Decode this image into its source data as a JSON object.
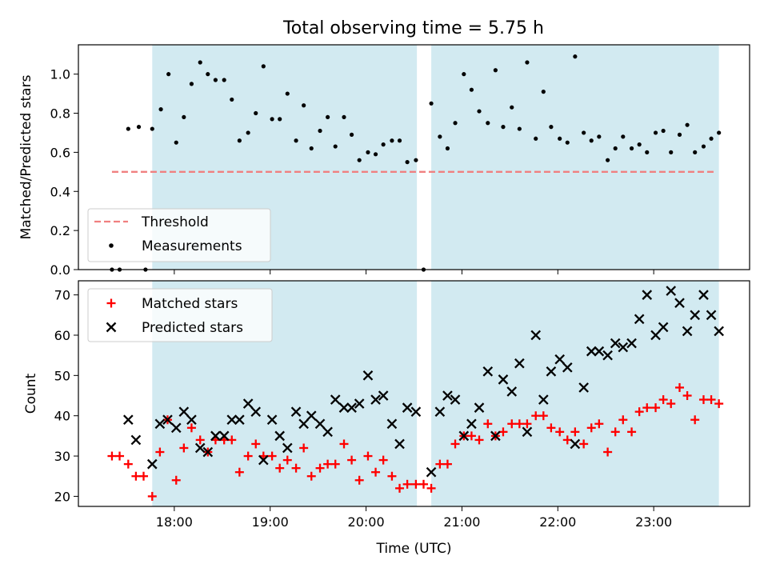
{
  "chart_data": {
    "title": "Total observing time = 5.75 h",
    "xlabel": "Time (UTC)",
    "x_unit": "hours UTC",
    "xlim": [
      17.0,
      24.0
    ],
    "x_ticks": [
      {
        "value": 18,
        "label": "18:00"
      },
      {
        "value": 19,
        "label": "19:00"
      },
      {
        "value": 20,
        "label": "20:00"
      },
      {
        "value": 21,
        "label": "21:00"
      },
      {
        "value": 22,
        "label": "22:00"
      },
      {
        "value": 23,
        "label": "23:00"
      }
    ],
    "shaded_intervals": [
      [
        17.77,
        20.53
      ],
      [
        20.68,
        23.68
      ]
    ],
    "shade_color": "#add8e6",
    "panels": [
      {
        "id": "ratio",
        "type": "scatter",
        "ylabel": "Matched/Predicted stars",
        "ylim": [
          0.0,
          1.15
        ],
        "y_ticks": [
          0.0,
          0.2,
          0.4,
          0.6,
          0.8,
          1.0
        ],
        "y_tick_labels": [
          "0.0",
          "0.2",
          "0.4",
          "0.6",
          "0.8",
          "1.0"
        ],
        "threshold": {
          "value": 0.5,
          "x_range": [
            17.35,
            23.65
          ],
          "color": "#f08080",
          "label": "Threshold"
        },
        "legend": {
          "position": "lower-left",
          "entries": [
            "Threshold",
            "Measurements"
          ]
        },
        "series": [
          {
            "name": "Measurements",
            "marker": "dot",
            "color": "#000000",
            "points": [
              [
                17.35,
                0.0
              ],
              [
                17.43,
                0.0
              ],
              [
                17.52,
                0.72
              ],
              [
                17.63,
                0.73
              ],
              [
                17.7,
                0.0
              ],
              [
                17.77,
                0.72
              ],
              [
                17.86,
                0.82
              ],
              [
                17.94,
                1.0
              ],
              [
                18.02,
                0.65
              ],
              [
                18.1,
                0.78
              ],
              [
                18.18,
                0.95
              ],
              [
                18.27,
                1.06
              ],
              [
                18.35,
                1.0
              ],
              [
                18.43,
                0.97
              ],
              [
                18.52,
                0.97
              ],
              [
                18.6,
                0.87
              ],
              [
                18.68,
                0.66
              ],
              [
                18.77,
                0.7
              ],
              [
                18.85,
                0.8
              ],
              [
                18.93,
                1.04
              ],
              [
                19.02,
                0.77
              ],
              [
                19.1,
                0.77
              ],
              [
                19.18,
                0.9
              ],
              [
                19.27,
                0.66
              ],
              [
                19.35,
                0.84
              ],
              [
                19.43,
                0.62
              ],
              [
                19.52,
                0.71
              ],
              [
                19.6,
                0.78
              ],
              [
                19.68,
                0.63
              ],
              [
                19.77,
                0.78
              ],
              [
                19.85,
                0.69
              ],
              [
                19.93,
                0.56
              ],
              [
                20.02,
                0.6
              ],
              [
                20.1,
                0.59
              ],
              [
                20.18,
                0.64
              ],
              [
                20.27,
                0.66
              ],
              [
                20.35,
                0.66
              ],
              [
                20.43,
                0.55
              ],
              [
                20.52,
                0.56
              ],
              [
                20.6,
                0.0
              ],
              [
                20.68,
                0.85
              ],
              [
                20.77,
                0.68
              ],
              [
                20.85,
                0.62
              ],
              [
                20.93,
                0.75
              ],
              [
                21.02,
                1.0
              ],
              [
                21.1,
                0.92
              ],
              [
                21.18,
                0.81
              ],
              [
                21.27,
                0.75
              ],
              [
                21.35,
                1.02
              ],
              [
                21.43,
                0.73
              ],
              [
                21.52,
                0.83
              ],
              [
                21.6,
                0.72
              ],
              [
                21.68,
                1.06
              ],
              [
                21.77,
                0.67
              ],
              [
                21.85,
                0.91
              ],
              [
                21.93,
                0.73
              ],
              [
                22.02,
                0.67
              ],
              [
                22.1,
                0.65
              ],
              [
                22.18,
                1.09
              ],
              [
                22.27,
                0.7
              ],
              [
                22.35,
                0.66
              ],
              [
                22.43,
                0.68
              ],
              [
                22.52,
                0.56
              ],
              [
                22.6,
                0.62
              ],
              [
                22.68,
                0.68
              ],
              [
                22.77,
                0.62
              ],
              [
                22.85,
                0.64
              ],
              [
                22.93,
                0.6
              ],
              [
                23.02,
                0.7
              ],
              [
                23.1,
                0.71
              ],
              [
                23.18,
                0.6
              ],
              [
                23.27,
                0.69
              ],
              [
                23.35,
                0.74
              ],
              [
                23.43,
                0.6
              ],
              [
                23.52,
                0.63
              ],
              [
                23.6,
                0.67
              ],
              [
                23.68,
                0.7
              ]
            ]
          }
        ]
      },
      {
        "id": "counts",
        "type": "scatter",
        "ylabel": "Count",
        "ylim": [
          17.5,
          73.5
        ],
        "y_ticks": [
          20,
          30,
          40,
          50,
          60,
          70
        ],
        "y_tick_labels": [
          "20",
          "30",
          "40",
          "50",
          "60",
          "70"
        ],
        "legend": {
          "position": "upper-left",
          "entries": [
            "Matched stars",
            "Predicted stars"
          ]
        },
        "series": [
          {
            "name": "Matched stars",
            "marker": "plus",
            "color": "#ff0000",
            "points": [
              [
                17.35,
                30
              ],
              [
                17.43,
                30
              ],
              [
                17.52,
                28
              ],
              [
                17.6,
                25
              ],
              [
                17.68,
                25
              ],
              [
                17.77,
                20
              ],
              [
                17.85,
                31
              ],
              [
                17.93,
                39
              ],
              [
                18.02,
                24
              ],
              [
                18.1,
                32
              ],
              [
                18.18,
                37
              ],
              [
                18.27,
                34
              ],
              [
                18.35,
                31
              ],
              [
                18.43,
                34
              ],
              [
                18.52,
                34
              ],
              [
                18.6,
                34
              ],
              [
                18.68,
                26
              ],
              [
                18.77,
                30
              ],
              [
                18.85,
                33
              ],
              [
                18.93,
                30
              ],
              [
                19.02,
                30
              ],
              [
                19.1,
                27
              ],
              [
                19.18,
                29
              ],
              [
                19.27,
                27
              ],
              [
                19.35,
                32
              ],
              [
                19.43,
                25
              ],
              [
                19.52,
                27
              ],
              [
                19.6,
                28
              ],
              [
                19.68,
                28
              ],
              [
                19.77,
                33
              ],
              [
                19.85,
                29
              ],
              [
                19.93,
                24
              ],
              [
                20.02,
                30
              ],
              [
                20.1,
                26
              ],
              [
                20.18,
                29
              ],
              [
                20.27,
                25
              ],
              [
                20.35,
                22
              ],
              [
                20.43,
                23
              ],
              [
                20.52,
                23
              ],
              [
                20.6,
                23
              ],
              [
                20.68,
                22
              ],
              [
                20.77,
                28
              ],
              [
                20.85,
                28
              ],
              [
                20.93,
                33
              ],
              [
                21.02,
                35
              ],
              [
                21.1,
                35
              ],
              [
                21.18,
                34
              ],
              [
                21.27,
                38
              ],
              [
                21.35,
                35
              ],
              [
                21.43,
                36
              ],
              [
                21.52,
                38
              ],
              [
                21.6,
                38
              ],
              [
                21.68,
                38
              ],
              [
                21.77,
                40
              ],
              [
                21.85,
                40
              ],
              [
                21.93,
                37
              ],
              [
                22.02,
                36
              ],
              [
                22.1,
                34
              ],
              [
                22.18,
                36
              ],
              [
                22.27,
                33
              ],
              [
                22.35,
                37
              ],
              [
                22.43,
                38
              ],
              [
                22.52,
                31
              ],
              [
                22.6,
                36
              ],
              [
                22.68,
                39
              ],
              [
                22.77,
                36
              ],
              [
                22.85,
                41
              ],
              [
                22.93,
                42
              ],
              [
                23.02,
                42
              ],
              [
                23.1,
                44
              ],
              [
                23.18,
                43
              ],
              [
                23.27,
                47
              ],
              [
                23.35,
                45
              ],
              [
                23.43,
                39
              ],
              [
                23.52,
                44
              ],
              [
                23.6,
                44
              ],
              [
                23.68,
                43
              ]
            ]
          },
          {
            "name": "Predicted stars",
            "marker": "x",
            "color": "#000000",
            "points": [
              [
                17.52,
                39
              ],
              [
                17.6,
                34
              ],
              [
                17.77,
                28
              ],
              [
                17.85,
                38
              ],
              [
                17.93,
                39
              ],
              [
                18.02,
                37
              ],
              [
                18.1,
                41
              ],
              [
                18.18,
                39
              ],
              [
                18.27,
                32
              ],
              [
                18.35,
                31
              ],
              [
                18.43,
                35
              ],
              [
                18.52,
                35
              ],
              [
                18.6,
                39
              ],
              [
                18.68,
                39
              ],
              [
                18.77,
                43
              ],
              [
                18.85,
                41
              ],
              [
                18.93,
                29
              ],
              [
                19.02,
                39
              ],
              [
                19.1,
                35
              ],
              [
                19.18,
                32
              ],
              [
                19.27,
                41
              ],
              [
                19.35,
                38
              ],
              [
                19.43,
                40
              ],
              [
                19.52,
                38
              ],
              [
                19.6,
                36
              ],
              [
                19.68,
                44
              ],
              [
                19.77,
                42
              ],
              [
                19.85,
                42
              ],
              [
                19.93,
                43
              ],
              [
                20.02,
                50
              ],
              [
                20.1,
                44
              ],
              [
                20.18,
                45
              ],
              [
                20.27,
                38
              ],
              [
                20.35,
                33
              ],
              [
                20.43,
                42
              ],
              [
                20.52,
                41
              ],
              [
                20.68,
                26
              ],
              [
                20.77,
                41
              ],
              [
                20.85,
                45
              ],
              [
                20.93,
                44
              ],
              [
                21.02,
                35
              ],
              [
                21.1,
                38
              ],
              [
                21.18,
                42
              ],
              [
                21.27,
                51
              ],
              [
                21.35,
                35
              ],
              [
                21.43,
                49
              ],
              [
                21.52,
                46
              ],
              [
                21.6,
                53
              ],
              [
                21.68,
                36
              ],
              [
                21.77,
                60
              ],
              [
                21.85,
                44
              ],
              [
                21.93,
                51
              ],
              [
                22.02,
                54
              ],
              [
                22.1,
                52
              ],
              [
                22.18,
                33
              ],
              [
                22.27,
                47
              ],
              [
                22.35,
                56
              ],
              [
                22.43,
                56
              ],
              [
                22.52,
                55
              ],
              [
                22.6,
                58
              ],
              [
                22.68,
                57
              ],
              [
                22.77,
                58
              ],
              [
                22.85,
                64
              ],
              [
                22.93,
                70
              ],
              [
                23.02,
                60
              ],
              [
                23.1,
                62
              ],
              [
                23.18,
                71
              ],
              [
                23.27,
                68
              ],
              [
                23.35,
                61
              ],
              [
                23.43,
                65
              ],
              [
                23.52,
                70
              ],
              [
                23.6,
                65
              ],
              [
                23.68,
                61
              ]
            ]
          }
        ]
      }
    ]
  }
}
